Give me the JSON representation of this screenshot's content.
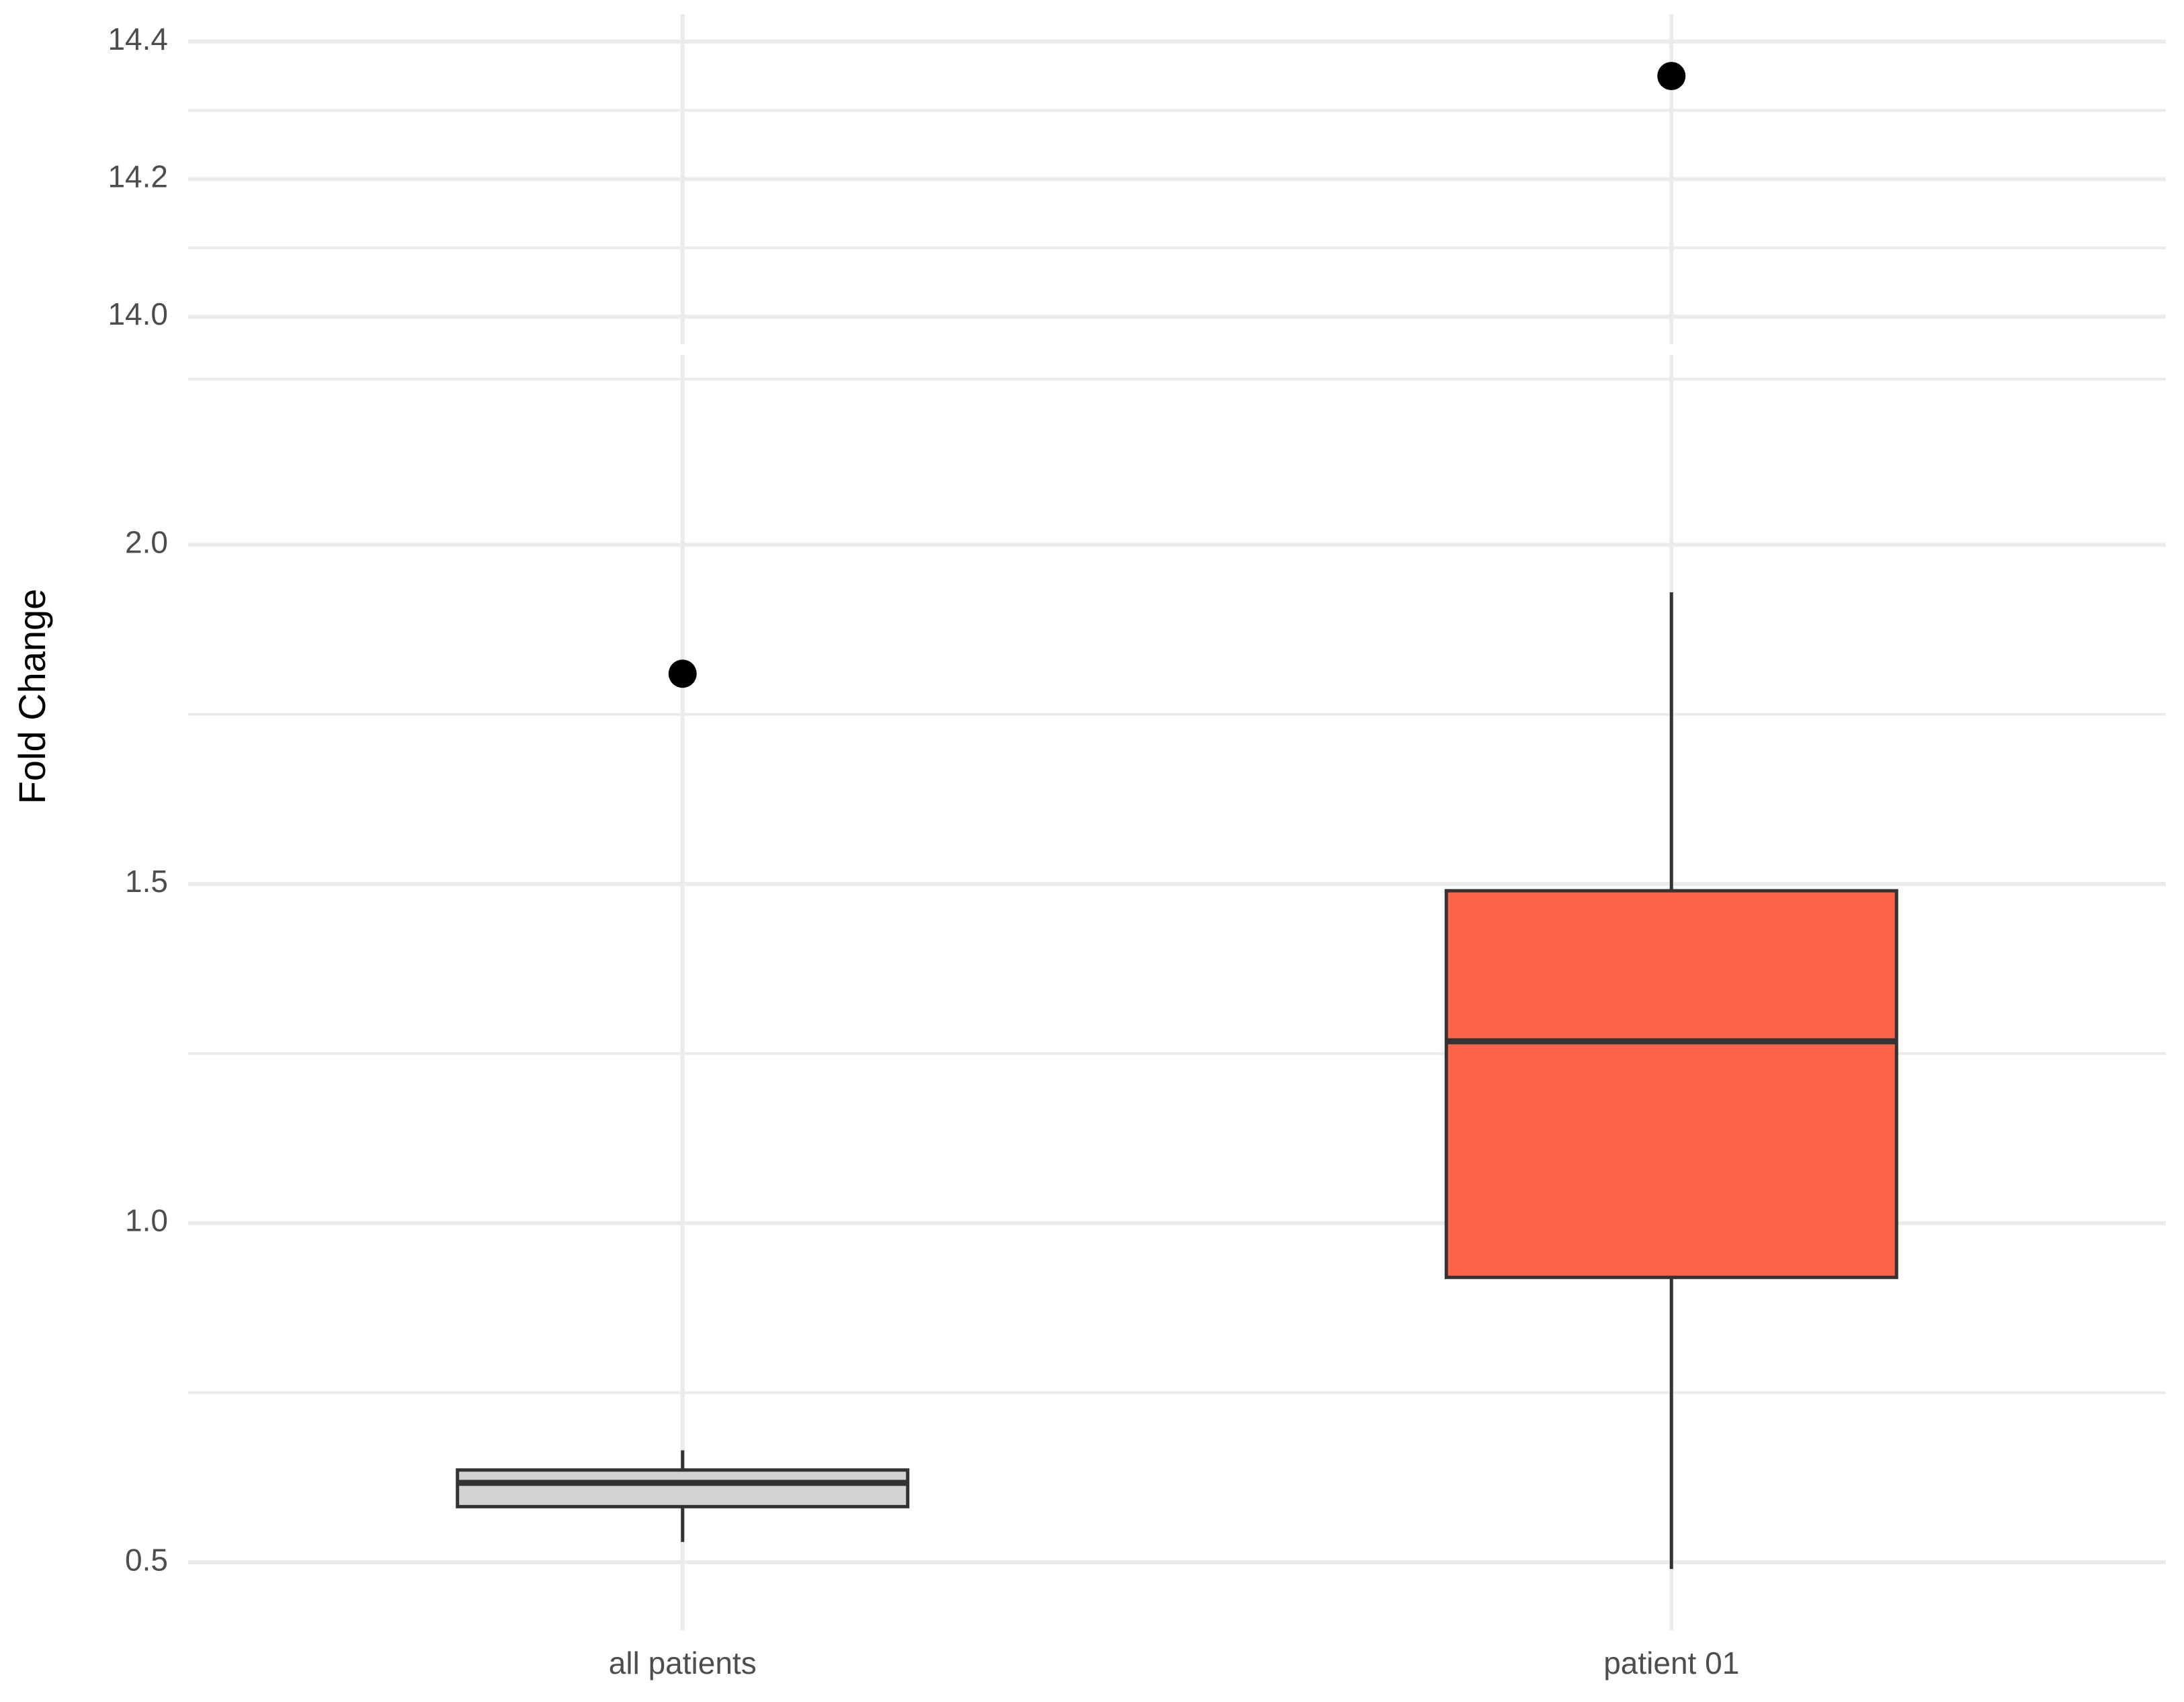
{
  "chart_data": [
    {
      "type": "box",
      "ylim": [
        13.96,
        14.44
      ],
      "yticks": [
        {
          "value": 14.0,
          "label": "14.0"
        },
        {
          "value": 14.2,
          "label": "14.2"
        },
        {
          "value": 14.4,
          "label": "14.4"
        }
      ],
      "outliers": [
        [],
        [
          14.35
        ]
      ],
      "grid": true
    },
    {
      "type": "box",
      "ylabel": "Fold Change",
      "categories": [
        "all patients",
        "patient 01"
      ],
      "colors": [
        "#d3d3d3",
        "#ff6347"
      ],
      "min": [
        0.53,
        0.49
      ],
      "q1": [
        0.582,
        0.92
      ],
      "median": [
        0.617,
        1.268
      ],
      "q3": [
        0.636,
        1.49
      ],
      "max": [
        0.665,
        1.93
      ],
      "outliers": [
        [
          1.81
        ],
        []
      ],
      "ylim": [
        0.4,
        2.28
      ],
      "yticks": [
        {
          "value": 0.5,
          "label": "0.5"
        },
        {
          "value": 1.0,
          "label": "1.0"
        },
        {
          "value": 1.5,
          "label": "1.5"
        },
        {
          "value": 2.0,
          "label": "2.0"
        }
      ],
      "grid": true
    }
  ]
}
